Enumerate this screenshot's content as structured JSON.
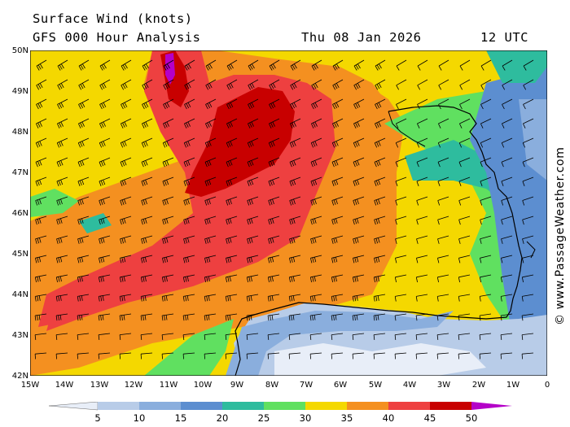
{
  "header": {
    "title": "Surface Wind (knots)",
    "subtitle": "GFS 000 Hour Analysis",
    "date": "Thu 08 Jan 2026",
    "time": "12 UTC"
  },
  "credit": "© www.PassageWeather.com",
  "lat_labels": [
    "50N",
    "49N",
    "48N",
    "47N",
    "46N",
    "45N",
    "44N",
    "43N",
    "42N"
  ],
  "lon_labels": [
    "15W",
    "14W",
    "13W",
    "12W",
    "11W",
    "10W",
    "9W",
    "8W",
    "7W",
    "6W",
    "5W",
    "4W",
    "3W",
    "2W",
    "1W",
    "0"
  ],
  "legend": {
    "labels": [
      "5",
      "10",
      "15",
      "20",
      "25",
      "30",
      "35",
      "40",
      "45",
      "50"
    ],
    "colors": [
      "#e8eef8",
      "#b8cce8",
      "#8aaedd",
      "#5c8ed0",
      "#2ebc9e",
      "#60e060",
      "#f4d800",
      "#f49020",
      "#ee4040",
      "#c80000",
      "#b400c8"
    ]
  },
  "colors": {
    "land": "#ffffff",
    "coast": "#000000"
  }
}
